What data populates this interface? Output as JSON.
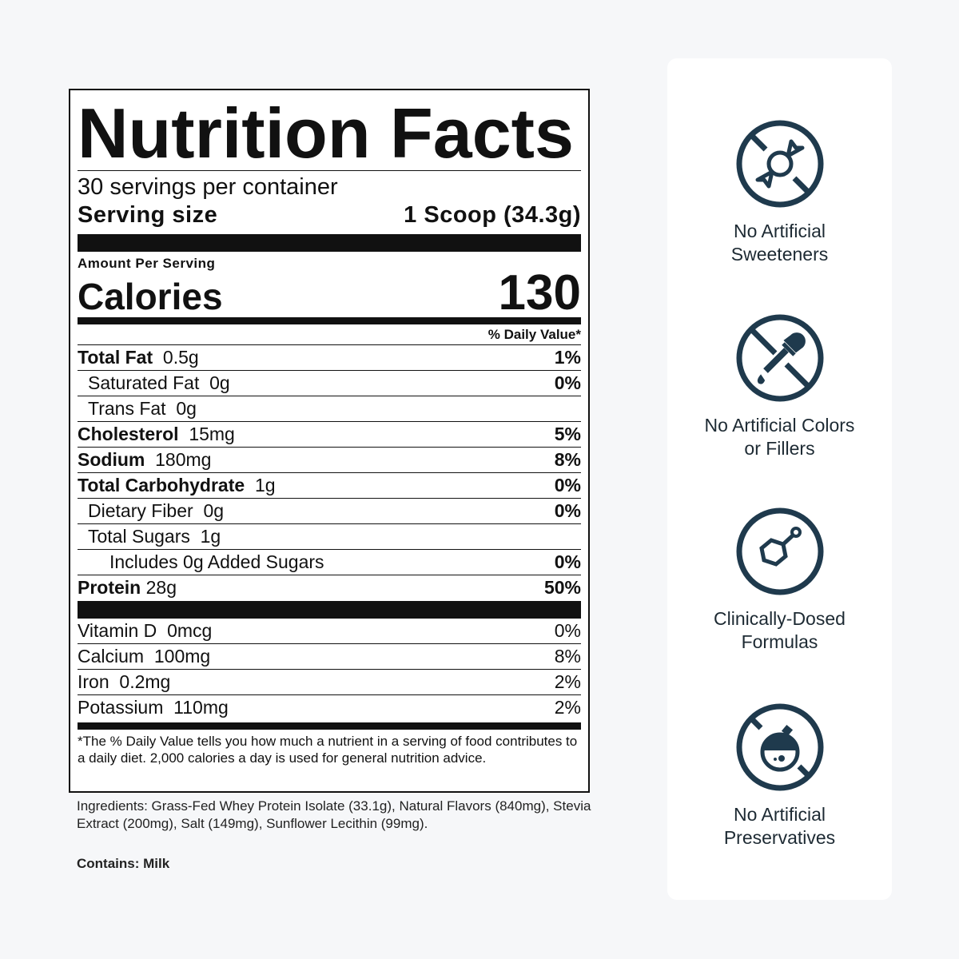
{
  "label": {
    "title": "Nutrition Facts",
    "servings": "30 servings per container",
    "serving_size_label": "Serving size",
    "serving_size_value": "1 Scoop (34.3g)",
    "amount_per_serving": "Amount Per Serving",
    "calories_label": "Calories",
    "calories_value": "130",
    "daily_value_header": "% Daily Value*",
    "nutrients": [
      {
        "name": "Total Fat",
        "amount": "0.5g",
        "dv": "1%",
        "bold": true,
        "indent": 0
      },
      {
        "name": "Saturated Fat",
        "amount": "0g",
        "dv": "0%",
        "bold": false,
        "indent": 1
      },
      {
        "name": "Trans Fat",
        "amount": "0g",
        "dv": "",
        "bold": false,
        "indent": 1
      },
      {
        "name": "Cholesterol",
        "amount": "15mg",
        "dv": "5%",
        "bold": true,
        "indent": 0
      },
      {
        "name": "Sodium",
        "amount": "180mg",
        "dv": "8%",
        "bold": true,
        "indent": 0
      },
      {
        "name": "Total Carbohydrate",
        "amount": "1g",
        "dv": "0%",
        "bold": true,
        "indent": 0
      },
      {
        "name": "Dietary Fiber",
        "amount": "0g",
        "dv": "0%",
        "bold": false,
        "indent": 1
      },
      {
        "name": "Total Sugars",
        "amount": "1g",
        "dv": "",
        "bold": false,
        "indent": 1
      },
      {
        "name": "Includes 0g Added Sugars",
        "amount": "",
        "dv": "0%",
        "bold": false,
        "indent": 2
      },
      {
        "name": "Protein",
        "amount": "28g",
        "dv": "50%",
        "bold": true,
        "indent": 0
      }
    ],
    "vitamins": [
      {
        "name": "Vitamin D",
        "amount": "0mcg",
        "dv": "0%"
      },
      {
        "name": "Calcium",
        "amount": "100mg",
        "dv": "8%"
      },
      {
        "name": "Iron",
        "amount": "0.2mg",
        "dv": "2%"
      },
      {
        "name": "Potassium",
        "amount": "110mg",
        "dv": "2%"
      }
    ],
    "footnote": "*The % Daily Value tells you how much a nutrient in a serving of food contributes to a daily diet. 2,000 calories a day is used for general nutrition advice."
  },
  "ingredients": "Ingredients: Grass-Fed Whey Protein Isolate (33.1g), Natural Flavors (840mg), Stevia Extract (200mg), Salt (149mg), Sunflower Lecithin (99mg).",
  "contains": "Contains: Milk",
  "features": [
    {
      "icon": "no-candy-icon",
      "text": "No Artificial Sweeteners"
    },
    {
      "icon": "no-dropper-icon",
      "text": "No Artificial Colors or Fillers"
    },
    {
      "icon": "molecule-icon",
      "text": "Clinically-Dosed Formulas"
    },
    {
      "icon": "no-flask-icon",
      "text": "No Artificial Preservatives"
    }
  ],
  "colors": {
    "icon": "#1f3a4d",
    "background": "#f6f7f9"
  }
}
